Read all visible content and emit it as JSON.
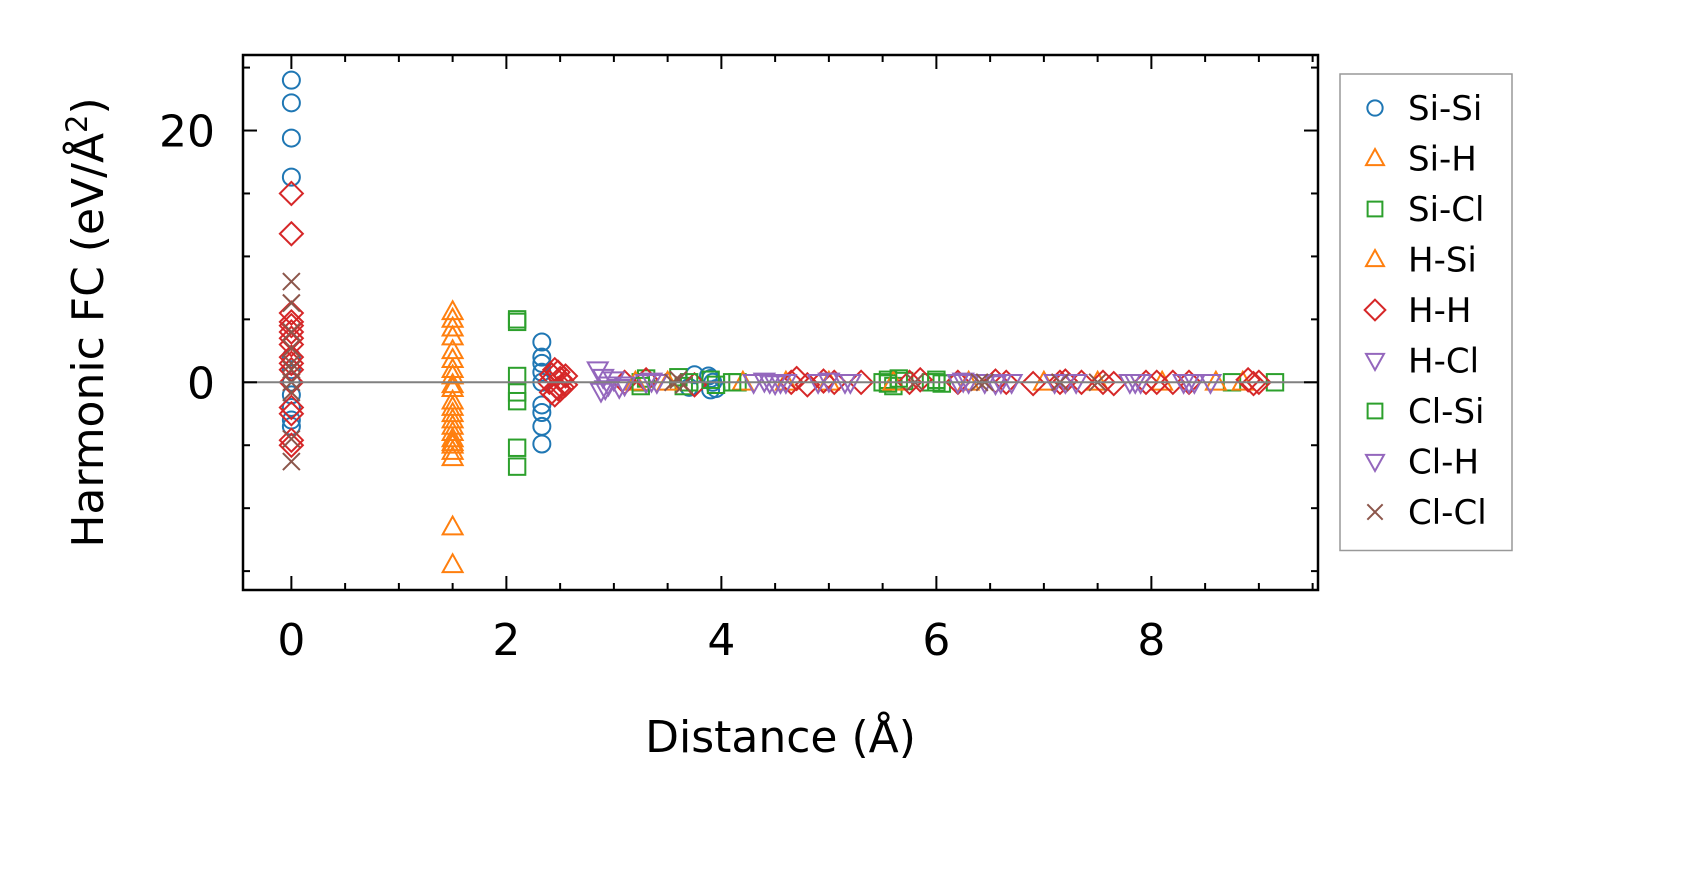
{
  "chart_data": {
    "type": "scatter",
    "xlabel": "Distance (Å)",
    "ylabel_main": "Harmonic FC (eV/Å",
    "ylabel_sup": "2",
    "ylabel_close": ")",
    "xlim": [
      -0.45,
      9.55
    ],
    "ylim": [
      -16.5,
      26
    ],
    "xticks": [
      0,
      2,
      4,
      6,
      8
    ],
    "yticks": [
      0,
      20
    ],
    "xticklabels": [
      "0",
      "2",
      "4",
      "6",
      "8"
    ],
    "yticklabels": [
      "0",
      "20"
    ],
    "x_minor_step": 0.5,
    "y_minor_step": 5,
    "zero_line": true,
    "legend_placement": "outside-right",
    "series": [
      {
        "name": "Si-Si",
        "marker": "circle",
        "color": "#1f77b4",
        "x": [
          0,
          0,
          0,
          0,
          0,
          0,
          0,
          0,
          0,
          0,
          0,
          2.33,
          2.33,
          2.33,
          2.33,
          2.33,
          2.33,
          2.33,
          2.33,
          2.33,
          3.7,
          3.75,
          3.88,
          3.9,
          3.92,
          3.95,
          3.9
        ],
        "y": [
          24,
          22.2,
          19.4,
          16.3,
          2,
          1,
          0,
          -1,
          -2,
          -3,
          -3.5,
          3.2,
          2,
          1.5,
          0,
          -1.8,
          -2.4,
          -3.5,
          -4.9,
          0.8,
          -0.4,
          0.6,
          0.5,
          -0.6,
          0,
          -0.5,
          0.3
        ]
      },
      {
        "name": "Si-H",
        "marker": "triangle-up",
        "color": "#ff7f0e",
        "x": [
          1.5,
          1.5,
          1.5,
          1.5,
          1.5,
          1.5,
          1.5,
          1.5,
          1.5,
          1.5,
          1.5,
          1.5,
          1.5,
          1.5,
          1.5,
          1.5,
          1.5,
          1.5,
          1.5,
          1.5
        ],
        "y": [
          5.6,
          5,
          4.3,
          3.6,
          2.5,
          1.8,
          0.5,
          -0.5,
          -2,
          -2.5,
          -3,
          -3.5,
          -4,
          -4.5,
          -5,
          -5.5,
          -6,
          -11.5,
          -14.5,
          -0.2
        ]
      },
      {
        "name": "Si-Cl",
        "marker": "square",
        "color": "#2ca02c",
        "x": [
          2.1,
          2.1,
          2.1,
          2.1,
          2.1,
          2.1,
          2.1,
          3.25,
          3.3,
          3.6,
          3.65,
          3.95,
          4.15,
          5.5,
          5.55,
          5.6,
          5.7,
          5.95,
          6.0,
          6.05,
          8.75,
          9.15
        ],
        "y": [
          5,
          4.8,
          0.5,
          -0.8,
          -1.5,
          -5.2,
          -6.7,
          0,
          0.3,
          0.4,
          -0.3,
          -0.2,
          0,
          0,
          0.2,
          -0.3,
          0.1,
          0,
          0.2,
          -0.1,
          0,
          0
        ]
      },
      {
        "name": "H-Si",
        "marker": "triangle-up",
        "color": "#ff7f0e",
        "x": [
          1.5,
          1.5,
          1.5,
          3.2,
          3.5,
          4.2,
          4.6,
          5.0,
          5.6,
          6.3,
          7.0,
          7.5,
          8.1,
          8.6,
          8.85
        ],
        "y": [
          1,
          -1.5,
          -4.8,
          0,
          0,
          0,
          0,
          0,
          0,
          0,
          0,
          0,
          0,
          0,
          0
        ]
      },
      {
        "name": "H-H",
        "marker": "diamond",
        "color": "#d62728",
        "x": [
          0,
          0,
          0,
          0,
          0,
          0,
          0,
          0,
          0,
          0,
          0,
          0,
          0,
          0,
          0,
          0,
          2.4,
          2.42,
          2.45,
          2.48,
          2.5,
          2.52,
          2.55,
          2.42,
          2.45,
          2.5,
          2.55,
          2.48,
          3.1,
          3.3,
          3.75,
          4.65,
          4.7,
          4.8,
          4.95,
          5.05,
          5.3,
          5.75,
          5.85,
          6.2,
          6.55,
          6.65,
          6.9,
          7.15,
          7.2,
          7.35,
          7.55,
          7.65,
          7.95,
          8.05,
          8.2,
          8.35,
          8.9,
          8.95,
          9.0
        ],
        "y": [
          15,
          11.8,
          5.5,
          4.8,
          4.5,
          4,
          3.5,
          3,
          2,
          1.5,
          1,
          0,
          -2,
          -2.5,
          -4.6,
          -5,
          0,
          0.6,
          1,
          0.8,
          0.3,
          -0.4,
          -0.2,
          -0.8,
          -1,
          -0.6,
          0.5,
          -0.5,
          0,
          0.2,
          -0.2,
          0,
          0.3,
          -0.2,
          0.1,
          0,
          0,
          0,
          0.2,
          0,
          0.1,
          0,
          -0.1,
          0,
          0.1,
          0,
          0,
          -0.1,
          0,
          0,
          0,
          0,
          0.2,
          -0.1,
          0
        ]
      },
      {
        "name": "H-Cl",
        "marker": "triangle-down",
        "color": "#9467bd",
        "x": [
          2.85,
          2.9,
          2.95,
          2.88,
          3.0,
          3.05,
          3.3,
          3.4,
          4.3,
          4.4,
          4.5,
          4.55,
          4.9,
          5.0,
          5.2,
          6.2,
          6.25,
          6.45,
          6.55,
          6.7,
          7.1,
          7.2,
          7.8,
          7.85,
          8.3,
          8.35,
          8.55
        ],
        "y": [
          1,
          0.4,
          -0.2,
          -0.7,
          0.2,
          -0.4,
          0,
          0,
          0,
          0.1,
          -0.1,
          0,
          0,
          0.1,
          0,
          0,
          0.1,
          0,
          -0.1,
          0,
          0,
          0,
          0,
          0,
          0,
          0,
          0
        ]
      },
      {
        "name": "Cl-Si",
        "marker": "square",
        "color": "#2ca02c",
        "x": [
          3.25,
          3.7,
          3.9,
          4.1,
          5.55,
          5.65,
          6.0
        ],
        "y": [
          -0.3,
          0,
          0.2,
          0,
          -0.1,
          0.3,
          0
        ]
      },
      {
        "name": "Cl-H",
        "marker": "triangle-down",
        "color": "#9467bd",
        "x": [
          2.92,
          3.1,
          3.35,
          4.45,
          4.6,
          5.15,
          6.3,
          6.6,
          7.3,
          7.9,
          8.4
        ],
        "y": [
          -0.5,
          -0.2,
          0.1,
          0,
          0,
          0,
          0,
          0,
          0,
          0,
          0
        ]
      },
      {
        "name": "Cl-Cl",
        "marker": "x",
        "color": "#8c564b",
        "x": [
          0,
          0,
          0,
          0,
          0,
          0,
          0,
          0,
          0,
          0,
          3.55,
          3.6,
          3.65,
          5.8,
          6.4,
          6.45,
          7.15,
          7.5
        ],
        "y": [
          8,
          6.3,
          4,
          2.7,
          1.5,
          1,
          0,
          -0.8,
          -4.5,
          -6.3,
          0,
          0.2,
          -0.2,
          0,
          0,
          0,
          0,
          0
        ]
      }
    ]
  }
}
